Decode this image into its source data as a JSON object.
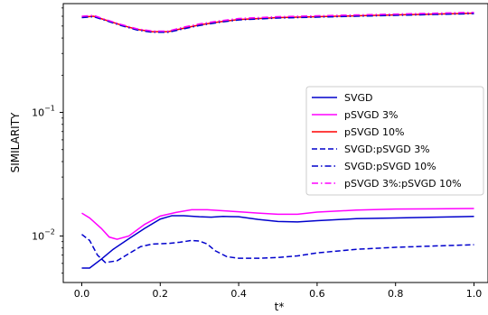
{
  "chart_data": {
    "type": "line",
    "title": "",
    "xlabel": "t*",
    "ylabel": "SIMILARITY",
    "yscale": "log",
    "xlim": [
      -0.05,
      1.03
    ],
    "ylim": [
      0.0045,
      1.0
    ],
    "grid": false,
    "legend_placement": "center-right",
    "x_ticks": [
      0.0,
      0.2,
      0.4,
      0.6,
      0.8,
      1.0
    ],
    "x_tick_labels": [
      "0.0",
      "0.2",
      "0.4",
      "0.6",
      "0.8",
      "1.0"
    ],
    "y_major_ticks": [
      0.01,
      0.1
    ],
    "y_minor_ticks": [
      0.005,
      0.006,
      0.007,
      0.008,
      0.009,
      0.02,
      0.03,
      0.04,
      0.05,
      0.06,
      0.07,
      0.08,
      0.09,
      0.2,
      0.3,
      0.4,
      0.5,
      0.6,
      0.7,
      0.8,
      0.9
    ],
    "series": [
      {
        "name": "SVGD",
        "color": "#0000cc",
        "dash": "solid",
        "x": [
          0.0,
          0.02,
          0.05,
          0.08,
          0.12,
          0.16,
          0.2,
          0.23,
          0.26,
          0.3,
          0.33,
          0.36,
          0.4,
          0.45,
          0.5,
          0.55,
          0.6,
          0.7,
          0.8,
          0.9,
          1.0
        ],
        "y": [
          0.0055,
          0.0055,
          0.0065,
          0.0078,
          0.0095,
          0.0115,
          0.0137,
          0.0146,
          0.0146,
          0.0143,
          0.0142,
          0.0144,
          0.0143,
          0.0136,
          0.0131,
          0.013,
          0.0133,
          0.0138,
          0.014,
          0.0142,
          0.0144
        ]
      },
      {
        "name": "pSVGD 3%",
        "color": "#ff00ff",
        "dash": "solid",
        "x": [
          0.0,
          0.02,
          0.05,
          0.07,
          0.09,
          0.12,
          0.16,
          0.2,
          0.24,
          0.28,
          0.32,
          0.36,
          0.4,
          0.45,
          0.5,
          0.55,
          0.6,
          0.7,
          0.8,
          0.9,
          1.0
        ],
        "y": [
          0.0153,
          0.014,
          0.0115,
          0.0098,
          0.0094,
          0.01,
          0.0124,
          0.0145,
          0.0155,
          0.0163,
          0.0163,
          0.016,
          0.0157,
          0.0153,
          0.015,
          0.015,
          0.0156,
          0.0162,
          0.0165,
          0.0166,
          0.0167
        ]
      },
      {
        "name": "pSVGD 10%",
        "color": "#ff0000",
        "dash": "solid",
        "x": [
          0.0,
          0.03,
          0.06,
          0.1,
          0.14,
          0.18,
          0.22,
          0.26,
          0.3,
          0.35,
          0.4,
          0.5,
          0.6,
          0.7,
          0.8,
          0.9,
          1.0
        ],
        "y": [
          0.59,
          0.6,
          0.56,
          0.51,
          0.47,
          0.45,
          0.45,
          0.48,
          0.51,
          0.54,
          0.565,
          0.585,
          0.595,
          0.605,
          0.615,
          0.625,
          0.635
        ]
      },
      {
        "name": "SVGD:pSVGD 3%",
        "color": "#0000cc",
        "dash": "dashed",
        "x": [
          0.0,
          0.02,
          0.04,
          0.06,
          0.09,
          0.12,
          0.15,
          0.18,
          0.22,
          0.25,
          0.28,
          0.3,
          0.32,
          0.34,
          0.37,
          0.4,
          0.45,
          0.5,
          0.55,
          0.6,
          0.7,
          0.8,
          0.9,
          1.0
        ],
        "y": [
          0.0103,
          0.0092,
          0.007,
          0.0061,
          0.0063,
          0.0072,
          0.0082,
          0.0086,
          0.0087,
          0.0089,
          0.0092,
          0.0091,
          0.0086,
          0.0076,
          0.0068,
          0.0066,
          0.0066,
          0.0067,
          0.0069,
          0.0073,
          0.0078,
          0.0081,
          0.0083,
          0.0085
        ]
      },
      {
        "name": "SVGD:pSVGD 10%",
        "color": "#0000cc",
        "dash": "dashdot",
        "x": [
          0.0,
          0.03,
          0.06,
          0.1,
          0.14,
          0.18,
          0.22,
          0.26,
          0.3,
          0.35,
          0.4,
          0.5,
          0.6,
          0.7,
          0.8,
          0.9,
          1.0
        ],
        "y": [
          0.585,
          0.595,
          0.555,
          0.505,
          0.465,
          0.445,
          0.445,
          0.475,
          0.505,
          0.535,
          0.56,
          0.58,
          0.59,
          0.6,
          0.61,
          0.62,
          0.63
        ]
      },
      {
        "name": "pSVGD 3%:pSVGD 10%",
        "color": "#ff00ff",
        "dash": "dashdot",
        "x": [
          0.0,
          0.03,
          0.06,
          0.1,
          0.14,
          0.18,
          0.22,
          0.26,
          0.3,
          0.35,
          0.4,
          0.5,
          0.6,
          0.7,
          0.8,
          0.9,
          1.0
        ],
        "y": [
          0.6,
          0.61,
          0.565,
          0.515,
          0.475,
          0.455,
          0.455,
          0.49,
          0.52,
          0.55,
          0.575,
          0.595,
          0.605,
          0.615,
          0.625,
          0.635,
          0.645
        ]
      }
    ]
  }
}
